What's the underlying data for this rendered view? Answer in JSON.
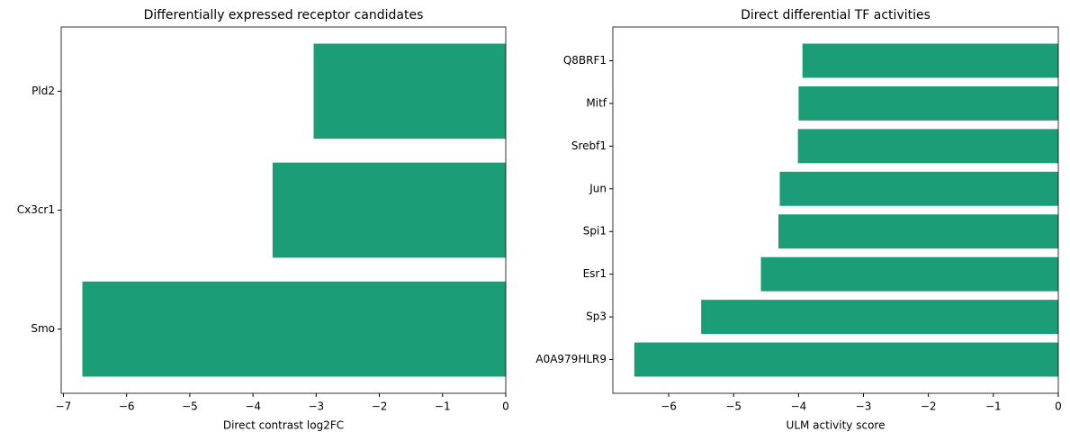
{
  "chart_data": [
    {
      "type": "barh",
      "title": "Differentially expressed receptor candidates",
      "xlabel": "Direct contrast log2FC",
      "categories": [
        "Smo",
        "Cx3cr1",
        "Pld2"
      ],
      "values": [
        -6.7,
        -3.69,
        -3.04
      ],
      "color": "#1b9e77",
      "xlim": [
        -7.035,
        0
      ],
      "xticks": [
        {
          "value": -7,
          "label": "−7"
        },
        {
          "value": -6,
          "label": "−6"
        },
        {
          "value": -5,
          "label": "−5"
        },
        {
          "value": -4,
          "label": "−4"
        },
        {
          "value": -3,
          "label": "−3"
        },
        {
          "value": -2,
          "label": "−2"
        },
        {
          "value": -1,
          "label": "−1"
        },
        0
      ]
    },
    {
      "type": "barh",
      "title": "Direct differential TF activities",
      "xlabel": "ULM activity score",
      "categories": [
        "A0A979HLR9",
        "Sp3",
        "Esr1",
        "Spi1",
        "Jun",
        "Srebf1",
        "Mitf",
        "Q8BRF1"
      ],
      "values": [
        -6.53,
        -5.5,
        -4.58,
        -4.31,
        -4.29,
        -4.01,
        -4.0,
        -3.94
      ],
      "color": "#1b9e77",
      "xlim": [
        -6.86,
        0
      ],
      "xticks": [
        {
          "value": -6,
          "label": "−6"
        },
        {
          "value": -5,
          "label": "−5"
        },
        {
          "value": -4,
          "label": "−4"
        },
        {
          "value": -3,
          "label": "−3"
        },
        {
          "value": -2,
          "label": "−2"
        },
        {
          "value": -1,
          "label": "−1"
        },
        0
      ]
    }
  ]
}
